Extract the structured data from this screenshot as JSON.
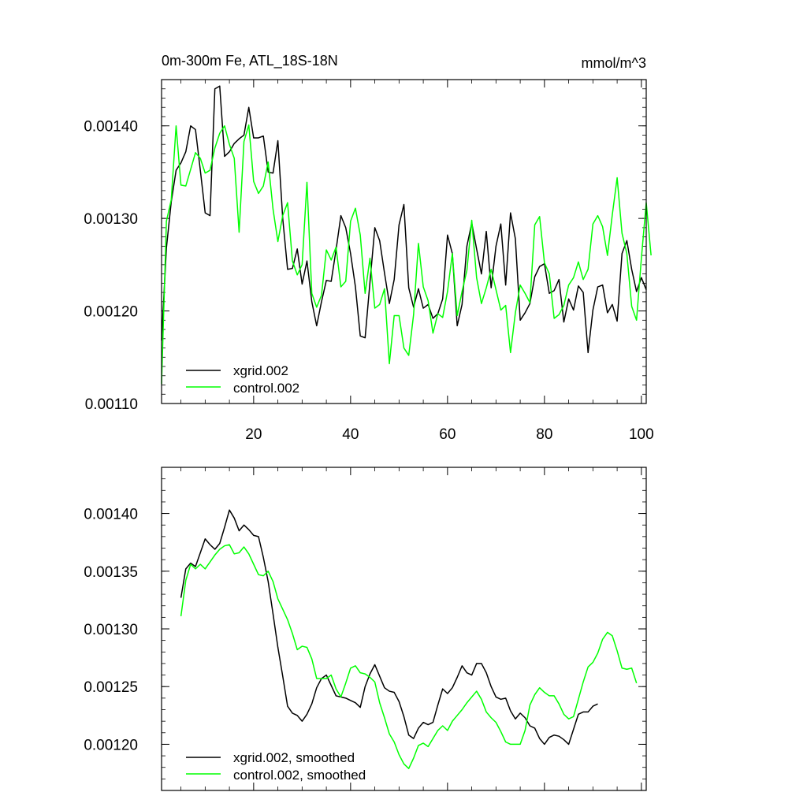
{
  "chart_data": [
    {
      "type": "line",
      "title": "0m-300m Fe, ATL_18S-18N",
      "units": "mmol/m^3",
      "xlim": [
        1,
        101
      ],
      "ylim": [
        0.0011,
        0.00145
      ],
      "xticks": [
        20,
        40,
        60,
        80,
        100
      ],
      "xtick_labels": [
        "20",
        "40",
        "60",
        "80",
        "100"
      ],
      "yticks": [
        0.0011,
        0.0012,
        0.0013,
        0.0014
      ],
      "ytick_labels": [
        "0.00110",
        "0.00120",
        "0.00130",
        "0.00140"
      ],
      "legend_position": "bottom-left",
      "series": [
        {
          "name": "xgrid.002",
          "color": "#000000",
          "values": [
            0.001168,
            0.001268,
            0.001318,
            0.001352,
            0.00136,
            0.001372,
            0.0014,
            0.001396,
            0.001352,
            0.001306,
            0.001303,
            0.00144,
            0.001443,
            0.001367,
            0.001372,
            0.001381,
            0.001386,
            0.00139,
            0.00142,
            0.001387,
            0.001387,
            0.001389,
            0.00135,
            0.001349,
            0.001384,
            0.0013,
            0.001245,
            0.001246,
            0.001267,
            0.001229,
            0.001254,
            0.00121,
            0.001184,
            0.00121,
            0.001233,
            0.001232,
            0.001266,
            0.001303,
            0.00129,
            0.001262,
            0.001226,
            0.001173,
            0.001171,
            0.001231,
            0.00129,
            0.001276,
            0.001241,
            0.001208,
            0.001234,
            0.001293,
            0.001315,
            0.001225,
            0.001204,
            0.001224,
            0.001203,
            0.001207,
            0.001192,
            0.001197,
            0.001213,
            0.001282,
            0.001262,
            0.001184,
            0.001207,
            0.00127,
            0.001295,
            0.001267,
            0.00124,
            0.001286,
            0.001225,
            0.00127,
            0.001294,
            0.001228,
            0.001306,
            0.001278,
            0.00119,
            0.001198,
            0.001208,
            0.001237,
            0.001248,
            0.001251,
            0.001219,
            0.001222,
            0.001234,
            0.001188,
            0.001213,
            0.001201,
            0.001227,
            0.00122,
            0.001155,
            0.001201,
            0.001226,
            0.001228,
            0.001198,
            0.001207,
            0.001189,
            0.001262,
            0.001276,
            0.001245,
            0.001221,
            0.001236,
            0.001223
          ]
        },
        {
          "name": "control.002",
          "color": "#00ff00",
          "values": [
            0.001121,
            0.001297,
            0.00132,
            0.0014,
            0.001336,
            0.001335,
            0.001353,
            0.001371,
            0.001365,
            0.001349,
            0.001352,
            0.001376,
            0.001392,
            0.0014,
            0.00138,
            0.001365,
            0.001285,
            0.001383,
            0.001401,
            0.00134,
            0.001327,
            0.001335,
            0.001361,
            0.00131,
            0.001275,
            0.001303,
            0.001317,
            0.001254,
            0.001239,
            0.00125,
            0.001339,
            0.001219,
            0.001204,
            0.001217,
            0.001266,
            0.001255,
            0.001269,
            0.001226,
            0.001232,
            0.001297,
            0.001311,
            0.001282,
            0.001219,
            0.001257,
            0.001203,
            0.001207,
            0.001224,
            0.001143,
            0.001195,
            0.001195,
            0.00116,
            0.001152,
            0.001196,
            0.001273,
            0.001226,
            0.001211,
            0.001176,
            0.001197,
            0.001193,
            0.001221,
            0.001262,
            0.001195,
            0.001221,
            0.001244,
            0.001298,
            0.001236,
            0.001208,
            0.001225,
            0.001245,
            0.001223,
            0.001201,
            0.001206,
            0.001155,
            0.001198,
            0.001228,
            0.001219,
            0.001209,
            0.001293,
            0.001302,
            0.001252,
            0.00124,
            0.001192,
            0.001196,
            0.001206,
            0.001228,
            0.001236,
            0.001253,
            0.001234,
            0.001245,
            0.001294,
            0.001303,
            0.001291,
            0.00126,
            0.001304,
            0.001344,
            0.001284,
            0.001262,
            0.001205,
            0.00119,
            0.001257,
            0.001317,
            0.00126
          ]
        }
      ]
    },
    {
      "type": "line",
      "title": "",
      "xlim": [
        1,
        101
      ],
      "ylim": [
        0.00116,
        0.00144
      ],
      "yticks": [
        0.0012,
        0.00125,
        0.0013,
        0.00135,
        0.0014
      ],
      "ytick_labels": [
        "0.00120",
        "0.00125",
        "0.00130",
        "0.00135",
        "0.00140"
      ],
      "xtick_labels": [],
      "legend_position": "bottom-left",
      "series": [
        {
          "name": "xgrid.002, smoothed",
          "color": "#000000",
          "values": [
            0.001327,
            0.001352,
            0.001357,
            0.001354,
            0.001366,
            0.001378,
            0.001373,
            0.001369,
            0.001374,
            0.001388,
            0.001403,
            0.001396,
            0.001385,
            0.00139,
            0.001386,
            0.001381,
            0.00138,
            0.001362,
            0.001341,
            0.001313,
            0.001284,
            0.001259,
            0.001233,
            0.001227,
            0.001225,
            0.00122,
            0.001226,
            0.001235,
            0.001249,
            0.001257,
            0.00126,
            0.001251,
            0.001242,
            0.001241,
            0.00124,
            0.001238,
            0.001236,
            0.001232,
            0.00125,
            0.001261,
            0.001269,
            0.001259,
            0.001249,
            0.001246,
            0.001245,
            0.001237,
            0.001224,
            0.001208,
            0.001205,
            0.001214,
            0.001219,
            0.001217,
            0.001219,
            0.001234,
            0.001248,
            0.001244,
            0.001249,
            0.001258,
            0.001268,
            0.001262,
            0.00126,
            0.00127,
            0.00127,
            0.001262,
            0.00125,
            0.001241,
            0.001239,
            0.00124,
            0.001229,
            0.001222,
            0.001227,
            0.001223,
            0.001216,
            0.001214,
            0.001205,
            0.0012,
            0.001206,
            0.001208,
            0.001207,
            0.001204,
            0.0012,
            0.001213,
            0.001226,
            0.001228,
            0.001228,
            0.001233,
            0.001235
          ]
        },
        {
          "name": "control.002, smoothed",
          "color": "#00ff00",
          "values": [
            0.001311,
            0.001342,
            0.001356,
            0.001352,
            0.001356,
            0.001352,
            0.001358,
            0.001364,
            0.001369,
            0.001372,
            0.001373,
            0.001365,
            0.001366,
            0.001371,
            0.001365,
            0.001356,
            0.001347,
            0.001346,
            0.00135,
            0.001341,
            0.001326,
            0.001317,
            0.001308,
            0.001296,
            0.001282,
            0.001285,
            0.001284,
            0.001274,
            0.001257,
            0.001257,
            0.001257,
            0.00126,
            0.001248,
            0.001241,
            0.001253,
            0.001266,
            0.001268,
            0.001262,
            0.001261,
            0.001258,
            0.001254,
            0.001236,
            0.001223,
            0.001209,
            0.001202,
            0.001191,
            0.001183,
            0.001179,
            0.001188,
            0.001199,
            0.001201,
            0.001198,
            0.001205,
            0.001212,
            0.001216,
            0.001212,
            0.00122,
            0.001225,
            0.00123,
            0.001236,
            0.001241,
            0.001246,
            0.001239,
            0.001228,
            0.001223,
            0.001219,
            0.001211,
            0.001202,
            0.0012,
            0.0012,
            0.0012,
            0.001212,
            0.001234,
            0.001243,
            0.001249,
            0.001245,
            0.001242,
            0.001242,
            0.001235,
            0.001226,
            0.001222,
            0.001224,
            0.001239,
            0.001254,
            0.001267,
            0.001271,
            0.001279,
            0.001291,
            0.001297,
            0.001294,
            0.001281,
            0.001266,
            0.001265,
            0.001266,
            0.001253
          ]
        }
      ]
    }
  ]
}
